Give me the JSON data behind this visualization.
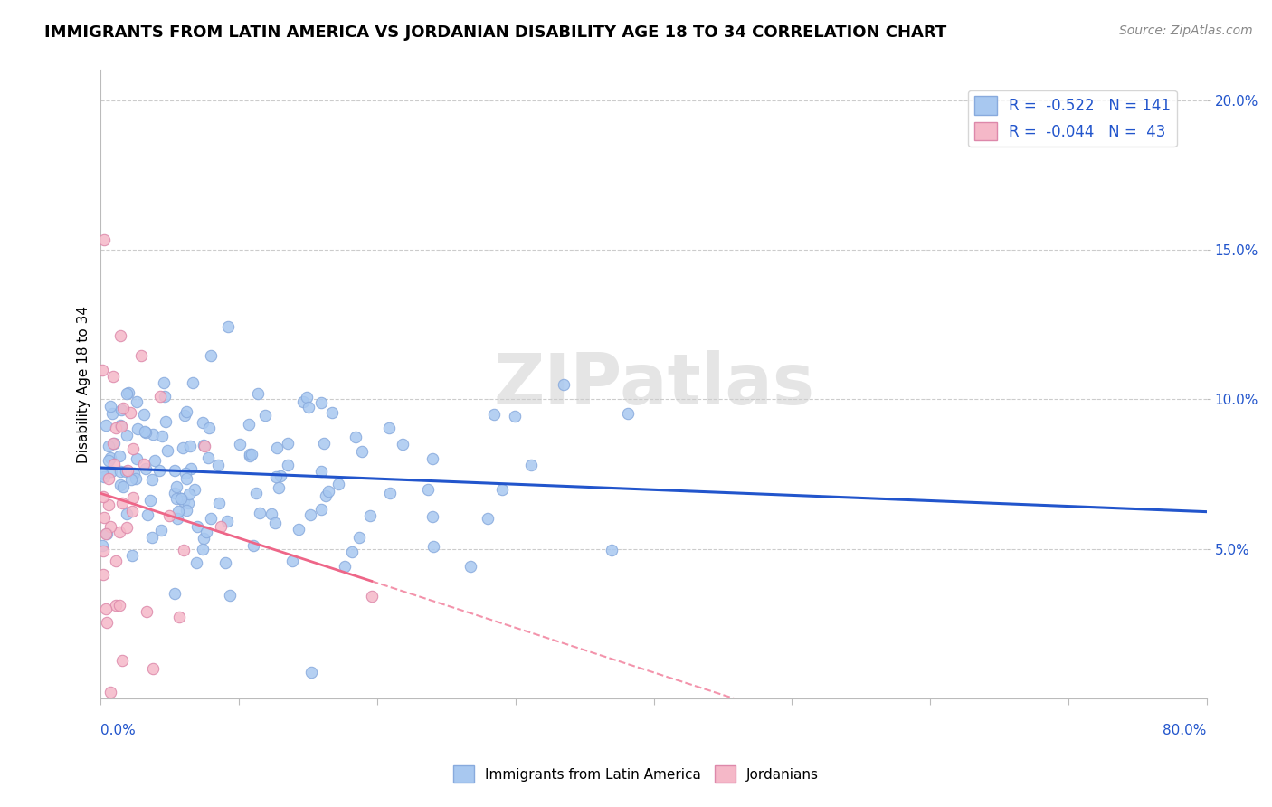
{
  "title": "IMMIGRANTS FROM LATIN AMERICA VS JORDANIAN DISABILITY AGE 18 TO 34 CORRELATION CHART",
  "source": "Source: ZipAtlas.com",
  "ylabel": "Disability Age 18 to 34",
  "legend1_label": "R =  -0.522   N = 141",
  "legend2_label": "R =  -0.044   N =  43",
  "legend_series1": "Immigrants from Latin America",
  "legend_series2": "Jordanians",
  "blue_color": "#A8C8F0",
  "pink_color": "#F5B8C8",
  "blue_line_color": "#2255CC",
  "pink_line_color": "#EE6688",
  "watermark_color": "#DDDDDD",
  "R_blue": -0.522,
  "N_blue": 141,
  "R_pink": -0.044,
  "N_pink": 43,
  "xlim": [
    0.0,
    0.8
  ],
  "ylim": [
    0.0,
    0.21
  ]
}
